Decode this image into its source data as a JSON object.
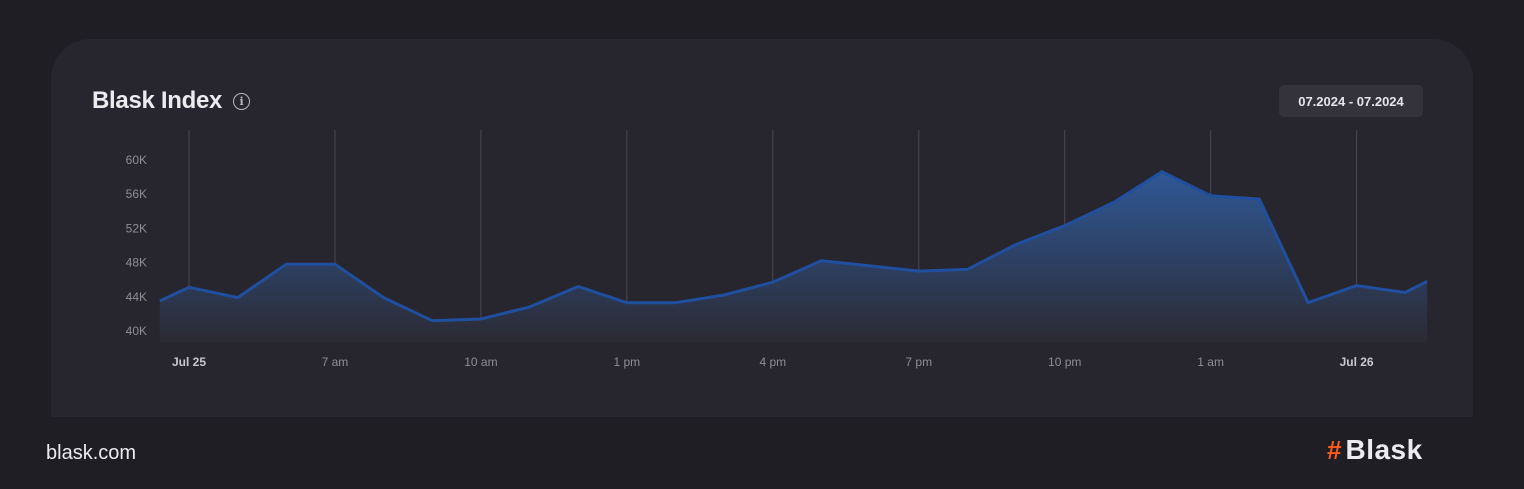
{
  "footer": {
    "url": "blask.com",
    "brand_symbol": "#",
    "brand_name": "Blask"
  },
  "colors": {
    "background": "#1f1e24",
    "card": "#27262e",
    "line": "#1f4f9e",
    "area_top": "#2f5896",
    "area_bottom": "#2b2a33",
    "brand_accent": "#ff5a1a"
  },
  "chart_data": {
    "type": "area",
    "title": "Blask Index",
    "info_icon": "info-icon",
    "date_range": "07.2024 - 07.2024",
    "xlabel": "",
    "ylabel": "",
    "ylim": [
      39000,
      61000
    ],
    "yticks": [
      40000,
      44000,
      48000,
      52000,
      56000,
      60000
    ],
    "ytick_labels": [
      "40K",
      "44K",
      "48K",
      "52K",
      "56K",
      "60K"
    ],
    "grid": {
      "vertical": true,
      "horizontal": false
    },
    "x_hours": [
      -0.6,
      0,
      1,
      2,
      3,
      4,
      5,
      6,
      7,
      8,
      9,
      10,
      11,
      12,
      13,
      14,
      15,
      16,
      17,
      18,
      19,
      20,
      21,
      22,
      23,
      24,
      25,
      25.45
    ],
    "xticks": [
      {
        "hour": 0,
        "label": "Jul 25",
        "bold": true
      },
      {
        "hour": 3,
        "label": "7 am",
        "bold": false
      },
      {
        "hour": 6,
        "label": "10 am",
        "bold": false
      },
      {
        "hour": 9,
        "label": "1 pm",
        "bold": false
      },
      {
        "hour": 12,
        "label": "4 pm",
        "bold": false
      },
      {
        "hour": 15,
        "label": "7 pm",
        "bold": false
      },
      {
        "hour": 18,
        "label": "10 pm",
        "bold": false
      },
      {
        "hour": 21,
        "label": "1 am",
        "bold": false
      },
      {
        "hour": 24,
        "label": "Jul 26",
        "bold": true
      }
    ],
    "series": [
      {
        "values": [
          43500,
          45100,
          43900,
          47800,
          47800,
          43900,
          41200,
          41400,
          42800,
          45200,
          43300,
          43300,
          44200,
          45700,
          48200,
          47600,
          47000,
          47200,
          50100,
          52300,
          55000,
          58600,
          55800,
          55400,
          43300,
          45300,
          44500,
          45800
        ]
      }
    ]
  }
}
